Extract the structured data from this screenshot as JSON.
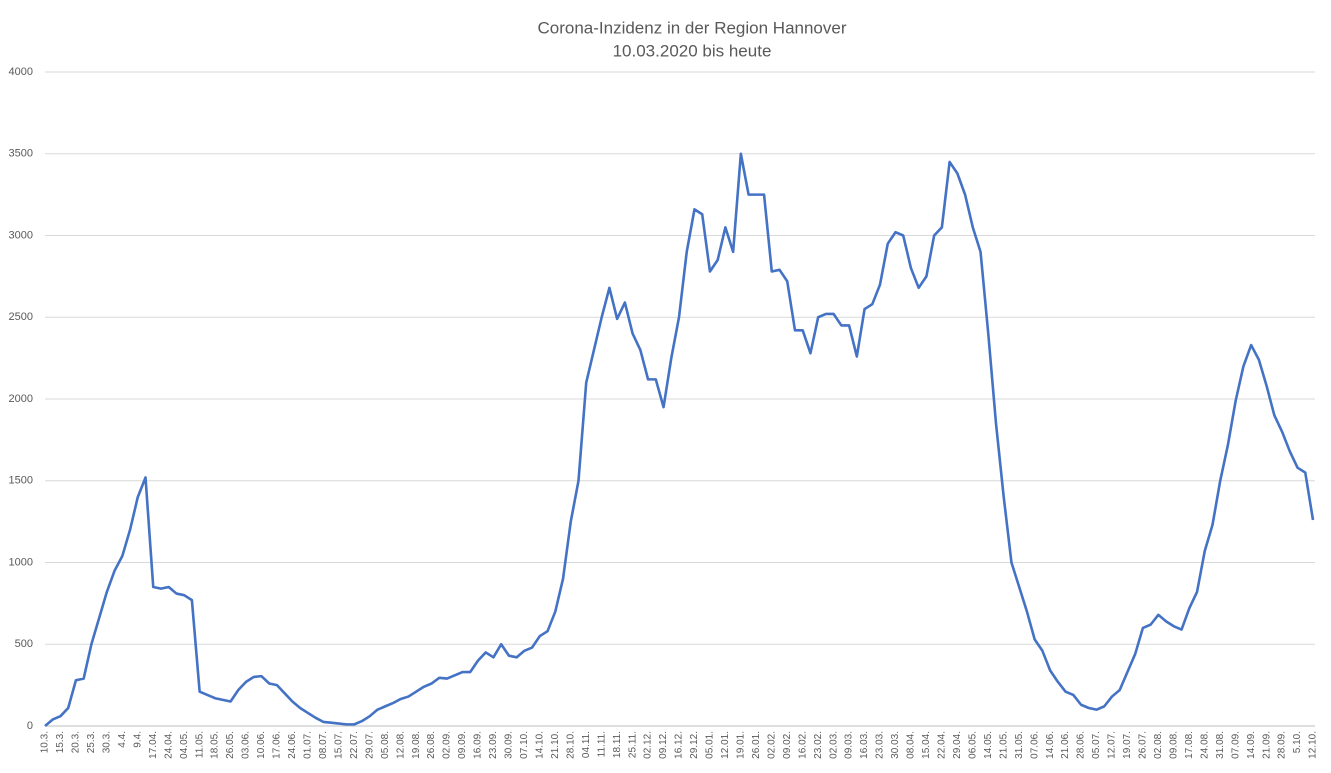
{
  "chart_data": {
    "type": "line",
    "title": "Corona-Inzidenz in der Region Hannover",
    "subtitle": "10.03.2020 bis heute",
    "categories": [
      "10.3.",
      null,
      "15.3.",
      null,
      "20.3.",
      null,
      "25.3.",
      null,
      "30.3.",
      null,
      "4.4.",
      null,
      "9.4.",
      null,
      "17.04.",
      null,
      "24.04.",
      null,
      "04.05.",
      null,
      "11.05.",
      null,
      "18.05.",
      null,
      "26.05.",
      null,
      "03.06.",
      null,
      "10.06.",
      null,
      "17.06.",
      null,
      "24.06.",
      null,
      "01.07.",
      null,
      "08.07.",
      null,
      "15.07.",
      null,
      "22.07.",
      null,
      "29.07.",
      null,
      "05.08.",
      null,
      "12.08.",
      null,
      "19.08.",
      null,
      "26.08.",
      null,
      "02.09.",
      null,
      "09.09.",
      null,
      "16.09.",
      null,
      "23.09.",
      null,
      "30.09.",
      null,
      "07.10.",
      null,
      "14.10.",
      null,
      "21.10.",
      null,
      "28.10.",
      null,
      "04.11.",
      null,
      "11.11.",
      null,
      "18.11.",
      null,
      "25.11.",
      null,
      "02.12.",
      null,
      "09.12.",
      null,
      "16.12.",
      null,
      "29.12.",
      null,
      "05.01.",
      null,
      "12.01.",
      null,
      "19.01.",
      null,
      "26.01.",
      null,
      "02.02.",
      null,
      "09.02.",
      null,
      "16.02.",
      null,
      "23.02.",
      null,
      "02.03.",
      null,
      "09.03.",
      null,
      "16.03.",
      null,
      "23.03.",
      null,
      "30.03.",
      null,
      "08.04.",
      null,
      "15.04.",
      null,
      "22.04.",
      null,
      "29.04.",
      null,
      "06.05.",
      null,
      "14.05.",
      null,
      "21.05.",
      null,
      "31.05.",
      null,
      "07.06.",
      null,
      "14.06.",
      null,
      "21.06.",
      null,
      "28.06.",
      null,
      "05.07.",
      null,
      "12.07.",
      null,
      "19.07.",
      null,
      "26.07.",
      null,
      "02.08.",
      null,
      "09.08.",
      null,
      "17.08.",
      null,
      "24.08.",
      null,
      "31.08.",
      null,
      "07.09.",
      null,
      "14.09.",
      null,
      "21.09.",
      null,
      "28.09.",
      null,
      "5.10.",
      null,
      "12.10."
    ],
    "series": [
      {
        "name": "Inzidenz",
        "color": "#4472c4",
        "values": [
          0,
          40,
          60,
          110,
          280,
          290,
          500,
          660,
          820,
          950,
          1040,
          1200,
          1400,
          1520,
          850,
          840,
          850,
          810,
          800,
          770,
          210,
          190,
          170,
          160,
          150,
          220,
          270,
          300,
          305,
          260,
          250,
          200,
          150,
          110,
          80,
          50,
          25,
          20,
          15,
          10,
          10,
          30,
          60,
          100,
          120,
          140,
          165,
          180,
          210,
          240,
          260,
          295,
          290,
          310,
          330,
          330,
          400,
          450,
          420,
          500,
          430,
          420,
          460,
          480,
          550,
          580,
          700,
          900,
          1250,
          1500,
          2100,
          2300,
          2500,
          2680,
          2490,
          2590,
          2400,
          2300,
          2120,
          2120,
          1950,
          2250,
          2500,
          2900,
          3160,
          3130,
          2780,
          2850,
          3050,
          2900,
          3500,
          3250,
          3250,
          3250,
          2780,
          2790,
          2720,
          2420,
          2420,
          2280,
          2500,
          2520,
          2520,
          2450,
          2450,
          2260,
          2550,
          2580,
          2700,
          2950,
          3020,
          3000,
          2800,
          2680,
          2750,
          3000,
          3050,
          3450,
          3380,
          3250,
          3050,
          2900,
          2400,
          1850,
          1400,
          1000,
          850,
          700,
          530,
          460,
          340,
          270,
          210,
          190,
          130,
          110,
          100,
          120,
          180,
          220,
          330,
          440,
          600,
          620,
          680,
          640,
          610,
          590,
          720,
          820,
          1070,
          1230,
          1500,
          1720,
          1990,
          2200,
          2330,
          2240,
          2080,
          1900,
          1800,
          1680,
          1580,
          1550,
          1260
        ]
      }
    ],
    "ylim": [
      0,
      4000
    ],
    "yticks": [
      0,
      500,
      1000,
      1500,
      2000,
      2500,
      3000,
      3500,
      4000
    ],
    "grid": true
  }
}
